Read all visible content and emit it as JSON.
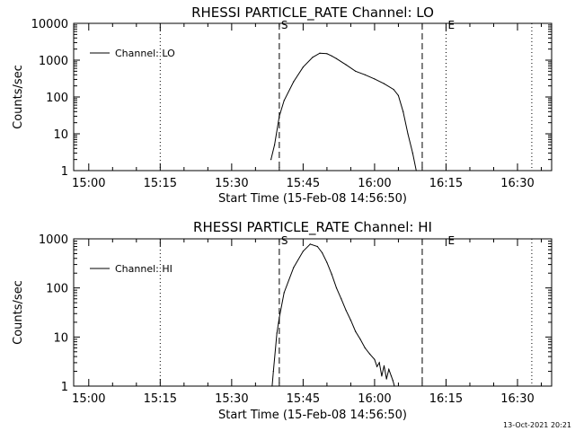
{
  "chart_data": [
    {
      "type": "line",
      "title": "RHESSI PARTICLE_RATE Channel: LO",
      "xlabel": "Start Time (15-Feb-08 14:56:50)",
      "ylabel": "Counts/sec",
      "yscale": "log",
      "xlim": [
        "14:56:50",
        "16:37:10"
      ],
      "ylim": [
        1,
        10000
      ],
      "x_ticks": [
        "15:00",
        "15:15",
        "15:30",
        "15:45",
        "16:00",
        "16:15",
        "16:30"
      ],
      "y_ticks": [
        "1",
        "10",
        "100",
        "1000",
        "10000"
      ],
      "legend": {
        "label": "Channel: LO",
        "placement": "top-left"
      },
      "dotted_lines": [
        "15:15",
        "16:15",
        "16:33"
      ],
      "dashed_lines": [
        "15:40",
        "16:10"
      ],
      "markers": [
        {
          "label": "S",
          "x": "15:40"
        },
        {
          "label": "E",
          "x": "16:15"
        }
      ],
      "series": [
        {
          "x": [
            "15:38:15",
            "15:39:00",
            "15:40:00",
            "15:41:00",
            "15:43:00",
            "15:45:00",
            "15:47:00",
            "15:48:30",
            "15:50:00",
            "15:51:00",
            "15:52:00",
            "15:54:00",
            "15:56:00",
            "15:58:00",
            "16:00:00",
            "16:02:00",
            "16:04:00",
            "16:05:00",
            "16:06:00",
            "16:07:00",
            "16:08:00",
            "16:08:45"
          ],
          "y": [
            2,
            5,
            30,
            80,
            260,
            650,
            1200,
            1550,
            1500,
            1300,
            1100,
            750,
            500,
            400,
            310,
            230,
            160,
            110,
            40,
            10,
            3,
            1
          ]
        }
      ]
    },
    {
      "type": "line",
      "title": "RHESSI PARTICLE_RATE Channel: HI",
      "xlabel": "Start Time (15-Feb-08 14:56:50)",
      "ylabel": "Counts/sec",
      "yscale": "log",
      "xlim": [
        "14:56:50",
        "16:37:10"
      ],
      "ylim": [
        1,
        1000
      ],
      "x_ticks": [
        "15:00",
        "15:15",
        "15:30",
        "15:45",
        "16:00",
        "16:15",
        "16:30"
      ],
      "y_ticks": [
        "1",
        "10",
        "100",
        "1000"
      ],
      "legend": {
        "label": "Channel: HI",
        "placement": "top-left"
      },
      "dotted_lines": [
        "15:15",
        "16:33"
      ],
      "dashed_lines": [
        "15:40",
        "16:10"
      ],
      "markers": [
        {
          "label": "S",
          "x": "15:40"
        },
        {
          "label": "E",
          "x": "16:15"
        }
      ],
      "series": [
        {
          "x": [
            "15:38:30",
            "15:38:45",
            "15:39:30",
            "15:40:00",
            "15:41:00",
            "15:43:00",
            "15:45:00",
            "15:46:30",
            "15:48:00",
            "15:49:00",
            "15:50:00",
            "15:51:00",
            "15:52:00",
            "15:53:00",
            "15:54:00",
            "15:55:00",
            "15:56:00",
            "15:57:00",
            "15:58:00",
            "15:59:00",
            "16:00:00",
            "16:00:30",
            "16:01:00",
            "16:01:30",
            "16:02:00",
            "16:02:30",
            "16:03:00",
            "16:03:30",
            "16:03:50",
            "16:04:10"
          ],
          "y": [
            1,
            2,
            12,
            25,
            80,
            260,
            560,
            780,
            700,
            520,
            330,
            190,
            100,
            60,
            35,
            22,
            13,
            9,
            6,
            4.5,
            3.5,
            2.5,
            3,
            1.6,
            2.6,
            1.4,
            2.2,
            1.6,
            1.3,
            1
          ]
        }
      ]
    }
  ],
  "footer": {
    "timestamp": "13-Oct-2021 20:21"
  }
}
